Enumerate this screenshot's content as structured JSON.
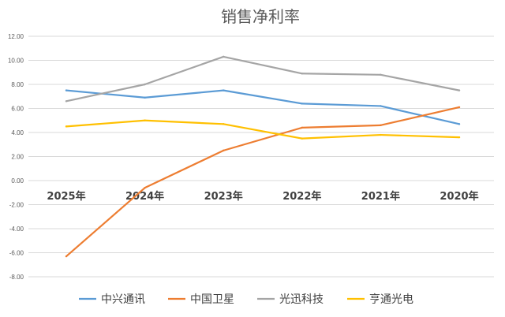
{
  "chart_data": {
    "type": "line",
    "title": "销售净利率",
    "categories": [
      "2025年",
      "2024年",
      "2023年",
      "2022年",
      "2021年",
      "2020年"
    ],
    "ylim": [
      -8,
      12
    ],
    "yticks": [
      "12.00",
      "10.00",
      "8.00",
      "6.00",
      "4.00",
      "2.00",
      "0.00",
      "-2.00",
      "-4.00",
      "-6.00",
      "-8.00"
    ],
    "grid": true,
    "legend_position": "bottom",
    "series": [
      {
        "name": "中兴通讯",
        "color": "#5b9bd5",
        "values": [
          7.5,
          6.9,
          7.5,
          6.4,
          6.2,
          4.7
        ]
      },
      {
        "name": "中国卫星",
        "color": "#ed7d31",
        "values": [
          -6.3,
          -0.6,
          2.5,
          4.4,
          4.6,
          6.1
        ]
      },
      {
        "name": "光迅科技",
        "color": "#a5a5a5",
        "values": [
          6.6,
          8.0,
          10.3,
          8.9,
          8.8,
          7.5
        ]
      },
      {
        "name": "亨通光电",
        "color": "#ffc000",
        "values": [
          4.5,
          5.0,
          4.7,
          3.5,
          3.8,
          3.6
        ]
      }
    ]
  }
}
